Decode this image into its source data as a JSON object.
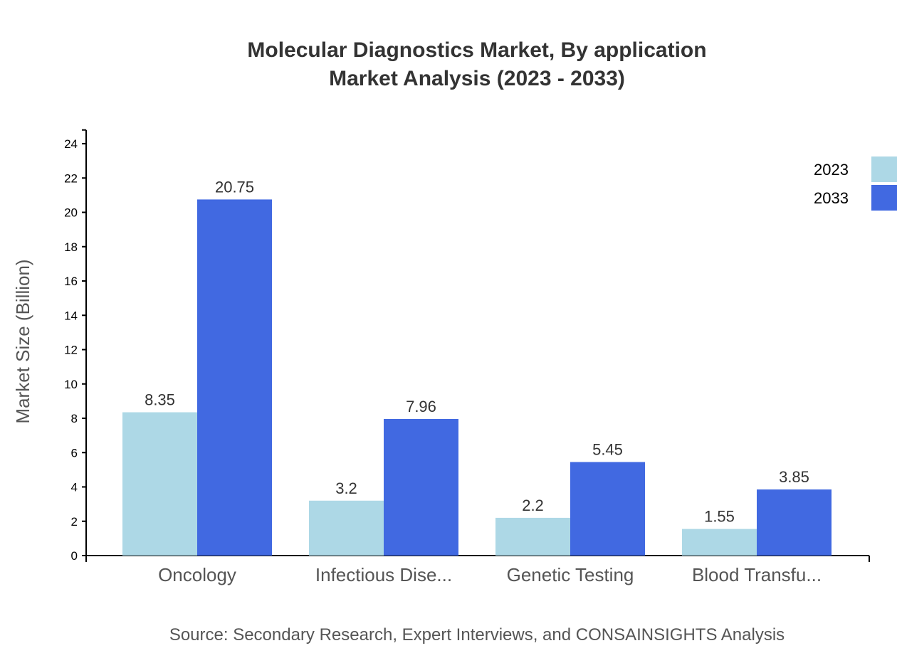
{
  "chart_data": {
    "type": "bar",
    "title": "Molecular Diagnostics Market, By application",
    "subtitle": "Market Analysis (2023 - 2033)",
    "xlabel": "",
    "ylabel": "Market Size (Billion)",
    "ylim": [
      0,
      24.8
    ],
    "yticks": [
      0,
      2,
      4,
      6,
      8,
      10,
      12,
      14,
      16,
      18,
      20,
      22,
      24
    ],
    "grid": false,
    "legend_position": "top-right",
    "categories": [
      "Oncology",
      "Infectious Dise...",
      "Genetic Testing",
      "Blood Transfu..."
    ],
    "series": [
      {
        "name": "2023",
        "color": "#add8e6",
        "values": [
          8.35,
          3.2,
          2.2,
          1.55
        ],
        "labels": [
          "8.35",
          "3.2",
          "2.2",
          "1.55"
        ]
      },
      {
        "name": "2033",
        "color": "#4169e1",
        "values": [
          20.75,
          7.96,
          5.45,
          3.85
        ],
        "labels": [
          "20.75",
          "7.96",
          "5.45",
          "3.85"
        ]
      }
    ],
    "source": "Source: Secondary Research, Expert Interviews, and CONSAINSIGHTS Analysis"
  }
}
